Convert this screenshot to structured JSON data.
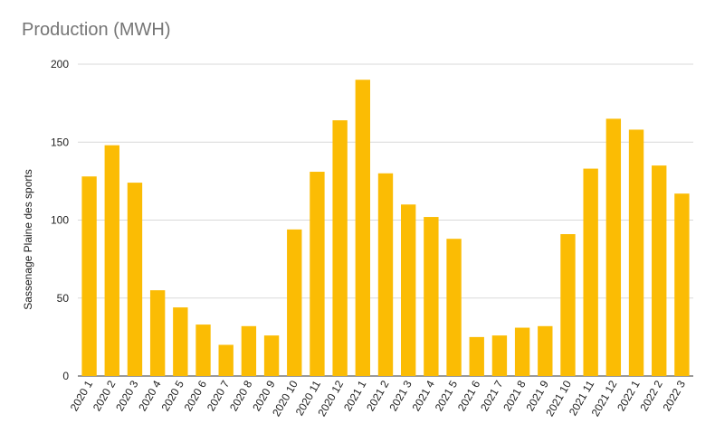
{
  "chart_data": {
    "type": "bar",
    "title": "Production (MWH)",
    "xlabel": "",
    "ylabel": "Sassenage Plaine des sports",
    "ylim": [
      0,
      200
    ],
    "yticks": [
      0,
      50,
      100,
      150,
      200
    ],
    "grid": true,
    "legend": "none",
    "bar_color": "#FBBC04",
    "categories": [
      "2020 1",
      "2020 2",
      "2020 3",
      "2020 4",
      "2020 5",
      "2020 6",
      "2020 7",
      "2020 8",
      "2020 9",
      "2020 10",
      "2020 11",
      "2020 12",
      "2021 1",
      "2021 2",
      "2021 3",
      "2021 4",
      "2021 5",
      "2021 6",
      "2021 7",
      "2021 8",
      "2021 9",
      "2021 10",
      "2021 11",
      "2021 12",
      "2022 1",
      "2022 2",
      "2022 3"
    ],
    "values": [
      128,
      148,
      124,
      55,
      44,
      33,
      20,
      32,
      26,
      94,
      131,
      164,
      190,
      130,
      110,
      102,
      88,
      25,
      26,
      31,
      32,
      91,
      133,
      165,
      158,
      135,
      117
    ]
  }
}
